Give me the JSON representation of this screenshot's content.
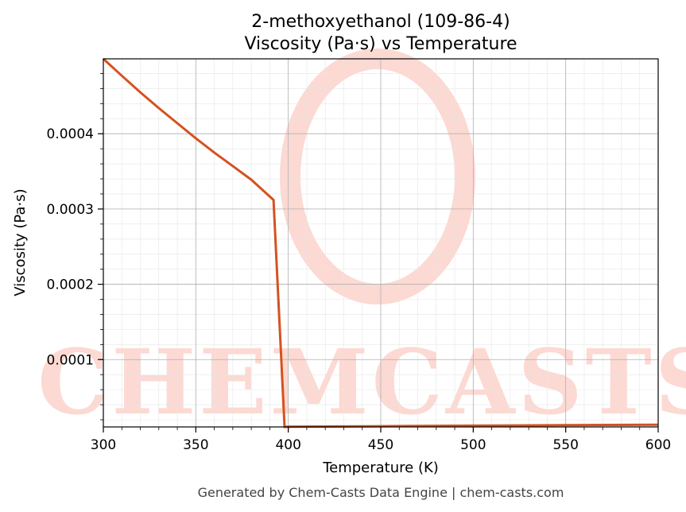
{
  "chart_data": {
    "type": "line",
    "title": "2-methoxyethanol (109-86-4)",
    "subtitle": "Viscosity (Pa·s) vs Temperature",
    "xlabel": "Temperature (K)",
    "ylabel": "Viscosity (Pa·s)",
    "xlim": [
      300,
      600
    ],
    "ylim": [
      1.05e-05,
      0.0004995
    ],
    "x_ticks": [
      300,
      350,
      400,
      450,
      500,
      550,
      600
    ],
    "x_tick_labels": [
      "300",
      "350",
      "400",
      "450",
      "500",
      "550",
      "600"
    ],
    "y_ticks": [
      0.0001,
      0.0002,
      0.0003,
      0.0004
    ],
    "y_tick_labels": [
      "0.0001",
      "0.0002",
      "0.0003",
      "0.0004"
    ],
    "grid": true,
    "series": [
      {
        "color": "#d4521f",
        "x": [
          300,
          310,
          320,
          330,
          340,
          350,
          360,
          370,
          380,
          392,
          398,
          400,
          450,
          500,
          550,
          600
        ],
        "y": [
          0.0004995,
          0.000477,
          0.000455,
          0.000434,
          0.000414,
          0.000394,
          0.000375,
          0.000357,
          0.000339,
          0.000312,
          1.05e-05,
          1.08e-05,
          1.15e-05,
          1.22e-05,
          1.28e-05,
          1.35e-05
        ]
      }
    ]
  },
  "footer": "Generated by Chem-Casts Data Engine | chem-casts.com",
  "watermark": "CHEMCASTS",
  "colors": {
    "line": "#d4521f",
    "watermark": "#fcd9d2",
    "grid_major": "#b0b0b0",
    "grid_minor": "#e6e6e6"
  }
}
